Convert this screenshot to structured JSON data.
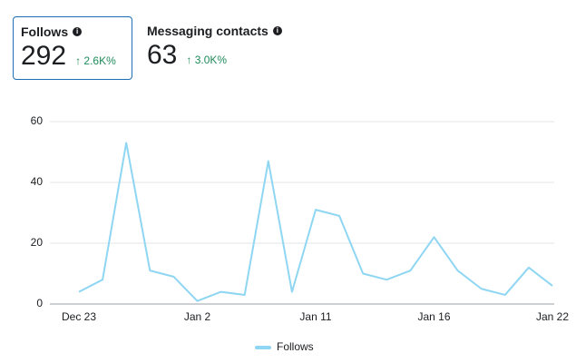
{
  "cards": [
    {
      "title": "Follows",
      "value": 292,
      "change": "2.6K%"
    },
    {
      "title": "Messaging contacts",
      "value": 63,
      "change": "3.0K%"
    }
  ],
  "chart_data": {
    "type": "line",
    "categories": [
      "Dec 23",
      null,
      null,
      null,
      null,
      "Jan 2",
      null,
      null,
      null,
      null,
      "Jan 11",
      null,
      null,
      null,
      null,
      "Jan 16",
      null,
      null,
      null,
      null,
      "Jan 22"
    ],
    "series": [
      {
        "name": "Follows",
        "color": "#8fd6f3",
        "values": [
          4,
          8,
          53,
          11,
          9,
          1,
          4,
          3,
          47,
          4,
          31,
          29,
          10,
          8,
          11,
          22,
          11,
          5,
          3,
          12,
          6
        ]
      }
    ],
    "ylim": [
      0,
      60
    ],
    "yticks": [
      0,
      20,
      40,
      60
    ],
    "grid": true
  }
}
